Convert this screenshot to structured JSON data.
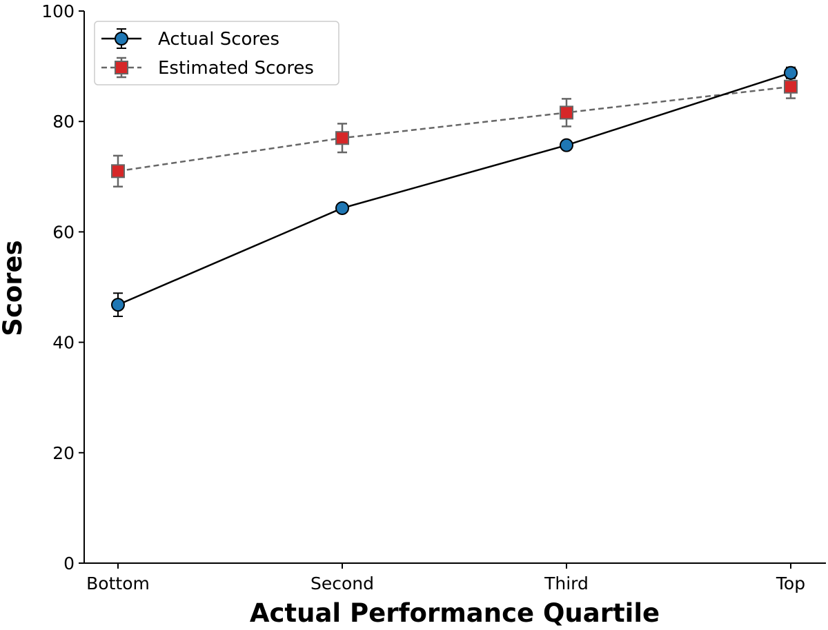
{
  "chart_data": {
    "type": "line",
    "title": "",
    "xlabel": "Actual Performance Quartile",
    "ylabel": "Scores",
    "categories": [
      "Bottom",
      "Second",
      "Third",
      "Top"
    ],
    "ylim": [
      0,
      100
    ],
    "yticks": [
      0,
      20,
      40,
      60,
      80,
      100
    ],
    "grid": false,
    "legend_position": "top-left",
    "series": [
      {
        "name": "Actual Scores",
        "values": [
          46.8,
          64.3,
          75.7,
          88.8
        ],
        "errors": [
          2.1,
          0,
          0,
          1.0
        ],
        "marker": "circle",
        "line_style": "solid",
        "line_color": "#000000",
        "marker_color": "#1f77b4",
        "error_color": "#000000"
      },
      {
        "name": "Estimated Scores",
        "values": [
          71.0,
          77.0,
          81.6,
          86.3
        ],
        "errors": [
          2.8,
          2.6,
          2.5,
          2.1
        ],
        "marker": "square",
        "line_style": "dashed",
        "line_color": "#666666",
        "marker_color": "#d62728",
        "error_color": "#666666"
      }
    ]
  }
}
